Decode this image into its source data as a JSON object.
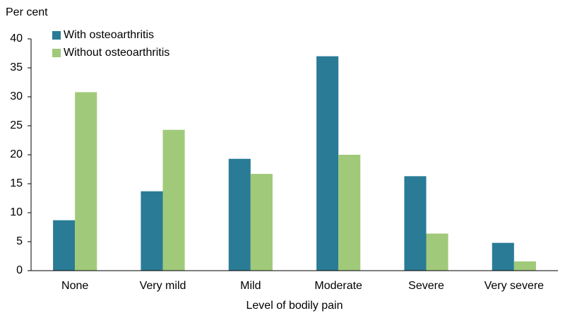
{
  "chart_data": {
    "type": "bar",
    "y_label": "Per cent",
    "x_label": "Level of bodily pain",
    "categories": [
      "None",
      "Very mild",
      "Mild",
      "Moderate",
      "Severe",
      "Very severe"
    ],
    "series": [
      {
        "name": "With osteoarthritis",
        "color": "#2a7b96",
        "values": [
          8.7,
          13.7,
          19.3,
          37.0,
          16.3,
          4.8
        ]
      },
      {
        "name": "Without osteoarthritis",
        "color": "#a1c97a",
        "values": [
          30.8,
          24.3,
          16.7,
          20.0,
          6.4,
          1.6
        ]
      }
    ],
    "ylim": [
      0,
      40
    ],
    "yticks": [
      0,
      5,
      10,
      15,
      20,
      25,
      30,
      35,
      40
    ],
    "grid": false,
    "legend": "top-left"
  }
}
